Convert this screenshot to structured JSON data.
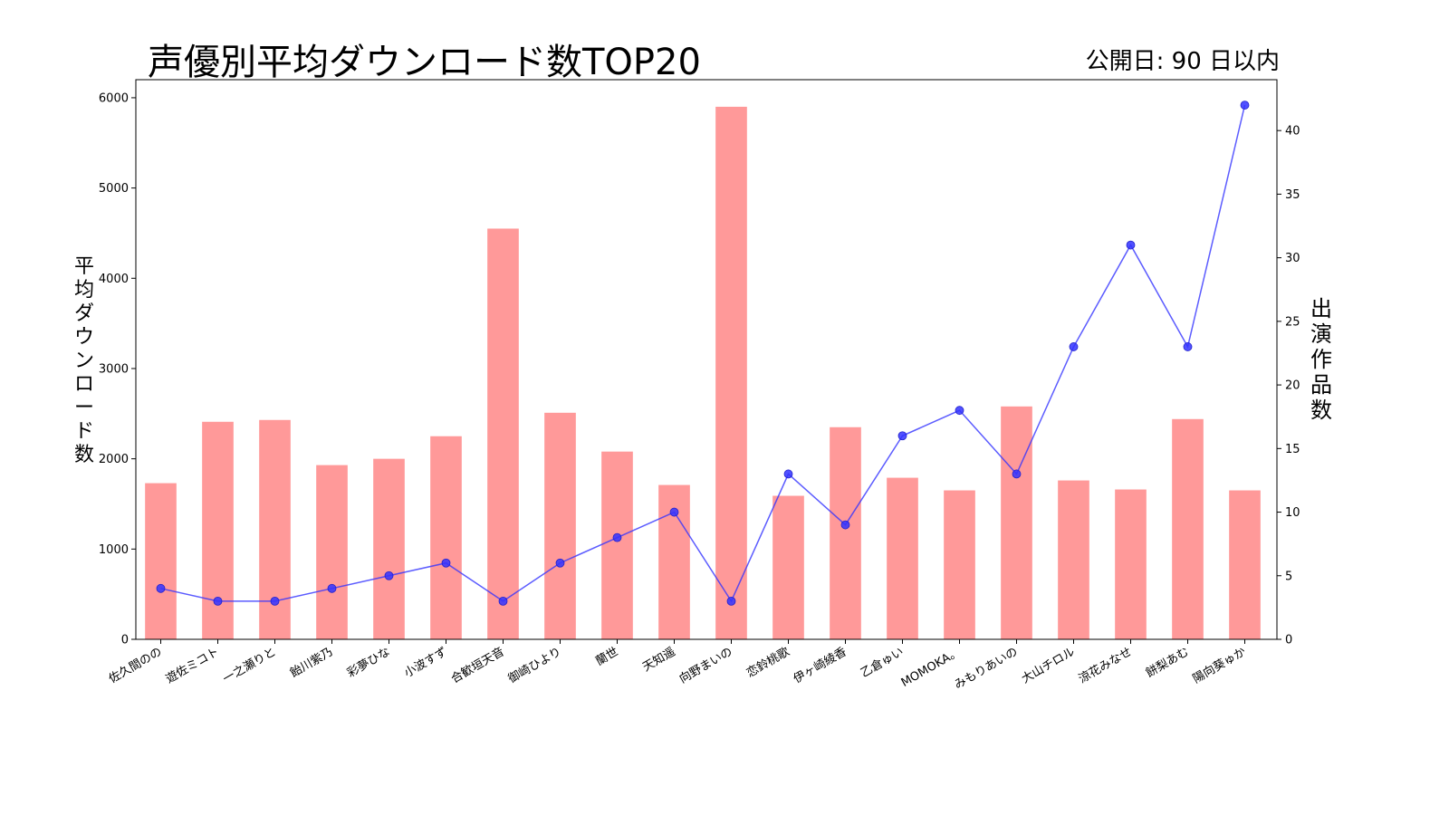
{
  "chart_data": {
    "type": "bar",
    "title": "声優別平均ダウンロード数TOP20",
    "subtitle": "公開日: 90 日以内",
    "ylabel": "平均ダウンロード数",
    "y2label": "出演作品数",
    "ylim": [
      0,
      6200
    ],
    "y2lim": [
      0,
      44
    ],
    "yticks": [
      0,
      1000,
      2000,
      3000,
      4000,
      5000,
      6000
    ],
    "y2ticks": [
      0,
      5,
      10,
      15,
      20,
      25,
      30,
      35,
      40
    ],
    "categories": [
      "佐久間のの",
      "遊佐ミコト",
      "一之瀬りと",
      "飴川紫乃",
      "彩夢ひな",
      "小波すず",
      "合歓垣天音",
      "御崎ひより",
      "蘭世",
      "天知遥",
      "向野まいの",
      "恋鈴桃歌",
      "伊ヶ崎綾香",
      "乙倉ゅい",
      "MOMOKA。",
      "みもりあいの",
      "大山チロル",
      "涼花みなせ",
      "餅梨あむ",
      "陽向葵ゅか"
    ],
    "series": [
      {
        "kind": "bar",
        "axis": "left",
        "color": "#ff9999",
        "values": [
          1730,
          2410,
          2430,
          1930,
          2000,
          2250,
          4550,
          2510,
          2080,
          1710,
          5900,
          1590,
          2350,
          1790,
          1650,
          2580,
          1760,
          1660,
          2440,
          1650
        ]
      },
      {
        "kind": "line",
        "axis": "right",
        "color": "#3333ff",
        "values": [
          4,
          3,
          3,
          4,
          5,
          6,
          3,
          6,
          8,
          10,
          3,
          13,
          9,
          16,
          18,
          13,
          23,
          31,
          23,
          42
        ]
      }
    ],
    "grid": false,
    "legend": "none"
  }
}
